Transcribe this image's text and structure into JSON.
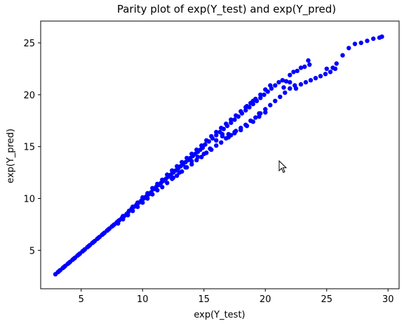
{
  "chart_data": {
    "type": "scatter",
    "title": "Parity plot of exp(Y_test) and exp(Y_pred)",
    "xlabel": "exp(Y_test)",
    "ylabel": "exp(Y_pred)",
    "xlim": [
      1.7,
      30.9
    ],
    "ylim": [
      1.3,
      27.1
    ],
    "xticks": [
      5,
      10,
      15,
      20,
      25,
      30
    ],
    "yticks": [
      5,
      10,
      15,
      20,
      25
    ],
    "grid": false,
    "point_color": "#0000ff",
    "series": [
      {
        "points": [
          [
            2.9,
            2.7
          ],
          [
            3.1,
            2.9
          ],
          [
            3.3,
            3.1
          ],
          [
            3.5,
            3.3
          ],
          [
            3.7,
            3.5
          ],
          [
            3.9,
            3.7
          ],
          [
            4.1,
            3.9
          ],
          [
            4.3,
            4.1
          ],
          [
            4.5,
            4.3
          ],
          [
            4.7,
            4.5
          ],
          [
            4.9,
            4.7
          ],
          [
            5.1,
            4.9
          ],
          [
            5.3,
            5.1
          ],
          [
            5.5,
            5.3
          ],
          [
            5.7,
            5.5
          ],
          [
            5.9,
            5.7
          ],
          [
            6.1,
            5.9
          ],
          [
            6.3,
            6.1
          ],
          [
            6.5,
            6.3
          ],
          [
            6.7,
            6.5
          ],
          [
            6.9,
            6.7
          ],
          [
            7.1,
            6.9
          ],
          [
            7.3,
            7.1
          ],
          [
            7.5,
            7.3
          ],
          [
            7.7,
            7.5
          ],
          [
            7.9,
            7.7
          ],
          [
            8.1,
            7.9
          ],
          [
            8.3,
            8.1
          ],
          [
            8.5,
            8.3
          ],
          [
            8.7,
            8.5
          ],
          [
            8.9,
            8.8
          ],
          [
            9.1,
            9.0
          ],
          [
            9.3,
            9.2
          ],
          [
            9.5,
            9.4
          ],
          [
            9.7,
            9.6
          ],
          [
            9.9,
            9.8
          ],
          [
            10.1,
            10.0
          ],
          [
            10.3,
            10.2
          ],
          [
            10.5,
            10.4
          ],
          [
            10.7,
            10.6
          ],
          [
            10.9,
            10.9
          ],
          [
            11.1,
            11.1
          ],
          [
            11.3,
            11.3
          ],
          [
            11.5,
            11.5
          ],
          [
            11.7,
            11.7
          ],
          [
            11.9,
            11.9
          ],
          [
            12.1,
            12.1
          ],
          [
            12.3,
            12.3
          ],
          [
            12.5,
            12.5
          ],
          [
            12.7,
            12.7
          ],
          [
            12.9,
            12.9
          ],
          [
            13.1,
            13.1
          ],
          [
            13.3,
            13.3
          ],
          [
            13.5,
            13.5
          ],
          [
            13.7,
            13.7
          ],
          [
            13.9,
            13.9
          ],
          [
            14.1,
            14.1
          ],
          [
            14.3,
            14.3
          ],
          [
            14.5,
            14.5
          ],
          [
            14.7,
            14.7
          ],
          [
            14.9,
            14.9
          ],
          [
            15.1,
            15.2
          ],
          [
            15.4,
            15.5
          ],
          [
            15.7,
            15.8
          ],
          [
            16.0,
            16.1
          ],
          [
            16.3,
            16.4
          ],
          [
            16.6,
            16.7
          ],
          [
            16.9,
            17.0
          ],
          [
            17.2,
            17.3
          ],
          [
            17.5,
            17.6
          ],
          [
            17.8,
            17.9
          ],
          [
            18.1,
            18.2
          ],
          [
            18.4,
            18.5
          ],
          [
            18.7,
            18.8
          ],
          [
            19.0,
            19.1
          ],
          [
            19.3,
            19.4
          ],
          [
            19.6,
            19.7
          ],
          [
            19.9,
            20.0
          ],
          [
            20.2,
            20.3
          ],
          [
            20.5,
            20.6
          ],
          [
            20.8,
            20.9
          ],
          [
            21.1,
            21.2
          ],
          [
            21.4,
            21.4
          ],
          [
            21.7,
            21.3
          ],
          [
            22.0,
            21.2
          ],
          [
            3.2,
            3.0
          ],
          [
            3.6,
            3.4
          ],
          [
            4.0,
            3.8
          ],
          [
            4.4,
            4.2
          ],
          [
            4.8,
            4.6
          ],
          [
            5.2,
            5.0
          ],
          [
            5.6,
            5.4
          ],
          [
            6.0,
            5.8
          ],
          [
            6.4,
            6.2
          ],
          [
            6.8,
            6.6
          ],
          [
            7.2,
            7.0
          ],
          [
            7.6,
            7.4
          ],
          [
            8.0,
            7.8
          ],
          [
            8.4,
            8.3
          ],
          [
            8.8,
            8.6
          ],
          [
            9.2,
            9.2
          ],
          [
            9.6,
            9.6
          ],
          [
            10.0,
            10.1
          ],
          [
            10.4,
            10.5
          ],
          [
            10.8,
            11.0
          ],
          [
            11.2,
            11.4
          ],
          [
            11.6,
            11.8
          ],
          [
            12.0,
            12.3
          ],
          [
            12.4,
            12.7
          ],
          [
            12.8,
            13.1
          ],
          [
            13.2,
            13.5
          ],
          [
            13.6,
            13.9
          ],
          [
            14.0,
            14.3
          ],
          [
            14.4,
            14.7
          ],
          [
            14.8,
            15.1
          ],
          [
            15.2,
            15.6
          ],
          [
            15.6,
            16.0
          ],
          [
            16.0,
            16.4
          ],
          [
            16.4,
            16.8
          ],
          [
            16.8,
            17.2
          ],
          [
            17.2,
            17.6
          ],
          [
            17.6,
            18.0
          ],
          [
            18.0,
            18.4
          ],
          [
            18.4,
            18.8
          ],
          [
            18.8,
            19.2
          ],
          [
            19.2,
            19.6
          ],
          [
            19.6,
            20.0
          ],
          [
            20.0,
            20.5
          ],
          [
            20.4,
            20.9
          ],
          [
            8.0,
            7.6
          ],
          [
            8.4,
            8.0
          ],
          [
            8.8,
            8.4
          ],
          [
            9.2,
            8.8
          ],
          [
            9.6,
            9.2
          ],
          [
            10.0,
            9.6
          ],
          [
            10.4,
            10.0
          ],
          [
            10.8,
            10.4
          ],
          [
            11.2,
            10.8
          ],
          [
            11.6,
            11.1
          ],
          [
            12.0,
            11.5
          ],
          [
            12.4,
            11.9
          ],
          [
            12.8,
            12.2
          ],
          [
            13.2,
            12.6
          ],
          [
            13.6,
            13.0
          ],
          [
            14.0,
            13.3
          ],
          [
            14.4,
            13.7
          ],
          [
            14.8,
            14.0
          ],
          [
            15.2,
            14.4
          ],
          [
            15.6,
            14.7
          ],
          [
            16.0,
            15.1
          ],
          [
            16.4,
            15.4
          ],
          [
            16.8,
            15.8
          ],
          [
            17.2,
            16.1
          ],
          [
            17.6,
            16.5
          ],
          [
            18.0,
            16.8
          ],
          [
            18.4,
            17.1
          ],
          [
            18.8,
            17.5
          ],
          [
            19.2,
            17.8
          ],
          [
            19.6,
            18.2
          ],
          [
            20.0,
            18.6
          ],
          [
            20.4,
            19.0
          ],
          [
            20.8,
            19.4
          ],
          [
            21.2,
            19.8
          ],
          [
            21.6,
            20.2
          ],
          [
            22.0,
            20.6
          ],
          [
            22.4,
            20.9
          ],
          [
            12.5,
            12.0
          ],
          [
            13.0,
            12.5
          ],
          [
            13.5,
            13.0
          ],
          [
            14.0,
            13.6
          ],
          [
            14.5,
            14.0
          ],
          [
            15.0,
            14.3
          ],
          [
            15.5,
            14.8
          ],
          [
            16.0,
            15.6
          ],
          [
            16.5,
            16.0
          ],
          [
            17.0,
            16.2
          ],
          [
            17.5,
            16.4
          ],
          [
            18.0,
            16.6
          ],
          [
            18.5,
            17.0
          ],
          [
            19.0,
            17.4
          ],
          [
            19.5,
            17.9
          ],
          [
            20.0,
            18.3
          ],
          [
            16.5,
            16.2
          ],
          [
            17.0,
            15.9
          ],
          [
            17.5,
            16.3
          ],
          [
            18.5,
            18.9
          ],
          [
            19.0,
            19.4
          ],
          [
            19.5,
            18.2
          ],
          [
            21.5,
            20.7
          ],
          [
            22.0,
            21.9
          ],
          [
            22.3,
            22.2
          ],
          [
            22.6,
            22.3
          ],
          [
            22.9,
            22.6
          ],
          [
            23.2,
            22.7
          ],
          [
            23.5,
            23.3
          ],
          [
            23.6,
            22.9
          ],
          [
            22.5,
            20.6
          ],
          [
            22.9,
            21.0
          ],
          [
            23.3,
            21.2
          ],
          [
            23.7,
            21.4
          ],
          [
            24.1,
            21.6
          ],
          [
            24.5,
            21.8
          ],
          [
            24.9,
            22.0
          ],
          [
            25.3,
            22.2
          ],
          [
            25.7,
            22.5
          ],
          [
            25.0,
            22.5
          ],
          [
            25.5,
            22.6
          ],
          [
            25.8,
            23.0
          ],
          [
            26.3,
            23.8
          ],
          [
            26.8,
            24.5
          ],
          [
            27.3,
            24.9
          ],
          [
            27.8,
            25.0
          ],
          [
            28.3,
            25.2
          ],
          [
            28.8,
            25.4
          ],
          [
            29.3,
            25.5
          ],
          [
            29.5,
            25.6
          ]
        ]
      }
    ]
  }
}
